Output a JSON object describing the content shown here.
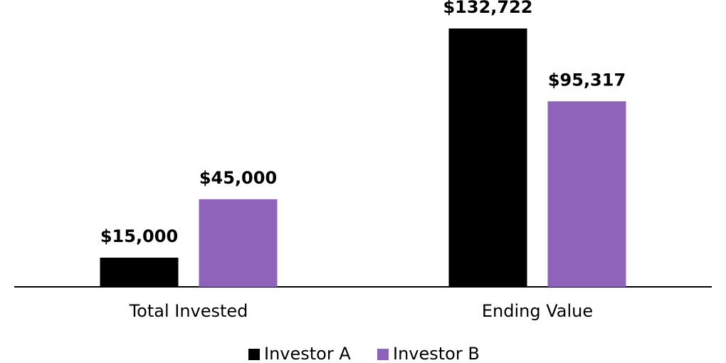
{
  "chart_data": {
    "type": "bar",
    "categories": [
      "Total Invested",
      "Ending Value"
    ],
    "series": [
      {
        "name": "Investor A",
        "color": "#000000",
        "values": [
          15000,
          132722
        ],
        "value_labels": [
          "$15,000",
          "$132,722"
        ]
      },
      {
        "name": "Investor B",
        "color": "#8e63b9",
        "values": [
          45000,
          95317
        ],
        "value_labels": [
          "$45,000",
          "$95,317"
        ]
      }
    ],
    "ylim": [
      0,
      132722
    ]
  }
}
